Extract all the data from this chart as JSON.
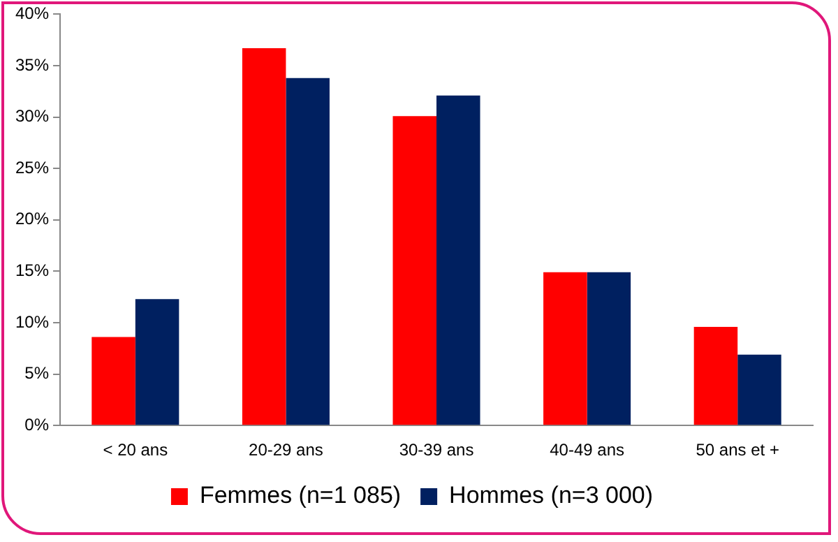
{
  "chart_data": {
    "type": "bar",
    "categories": [
      "< 20 ans",
      "20-29 ans",
      "30-39 ans",
      "40-49 ans",
      "50 ans et +"
    ],
    "series": [
      {
        "name": "Femmes (n=1 085)",
        "color": "#ff0000",
        "values": [
          8.6,
          36.7,
          30.1,
          14.9,
          9.6
        ]
      },
      {
        "name": "Hommes (n=3 000)",
        "color": "#002060",
        "values": [
          12.3,
          33.8,
          32.1,
          14.9,
          6.9
        ]
      }
    ],
    "ylim": [
      0,
      40
    ],
    "yticks": [
      {
        "value": 0,
        "label": "0%"
      },
      {
        "value": 5,
        "label": "5%"
      },
      {
        "value": 10,
        "label": "10%"
      },
      {
        "value": 15,
        "label": "15%"
      },
      {
        "value": 20,
        "label": "20%"
      },
      {
        "value": 25,
        "label": "25%"
      },
      {
        "value": 30,
        "label": "30%"
      },
      {
        "value": 35,
        "label": "35%"
      },
      {
        "value": 40,
        "label": "40%"
      }
    ],
    "grid": false,
    "legend": "bottom"
  }
}
